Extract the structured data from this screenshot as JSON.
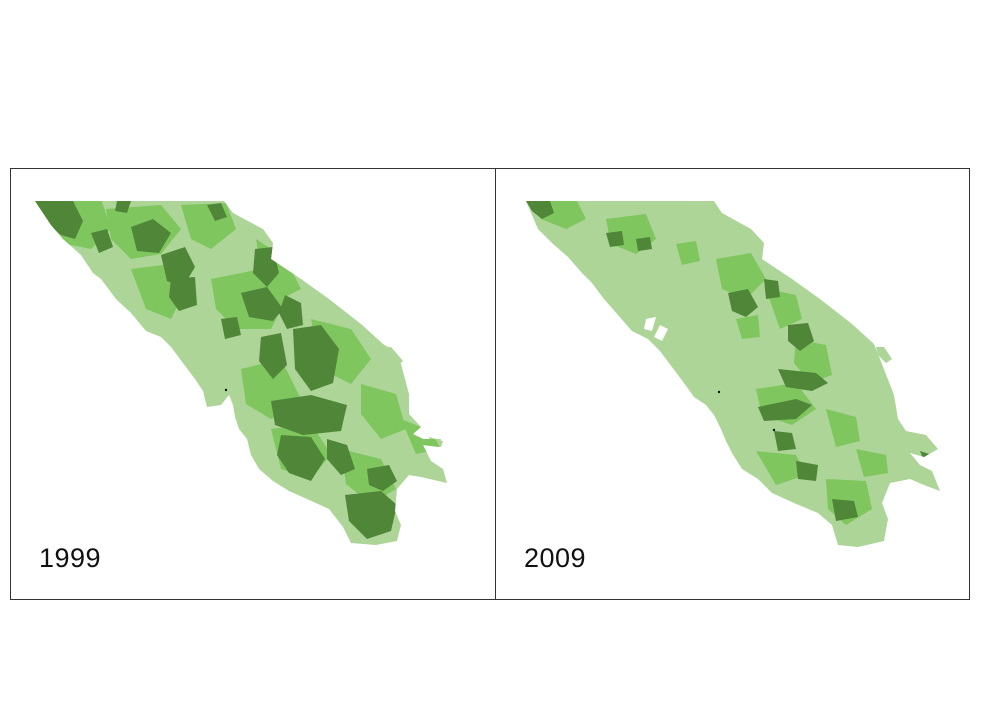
{
  "colors": {
    "base": "#acd597",
    "medium": "#7fc65f",
    "dark": "#4f8638",
    "frame": "#333333"
  },
  "panels": [
    {
      "year": "1999",
      "density": "high"
    },
    {
      "year": "2009",
      "density": "low"
    }
  ]
}
